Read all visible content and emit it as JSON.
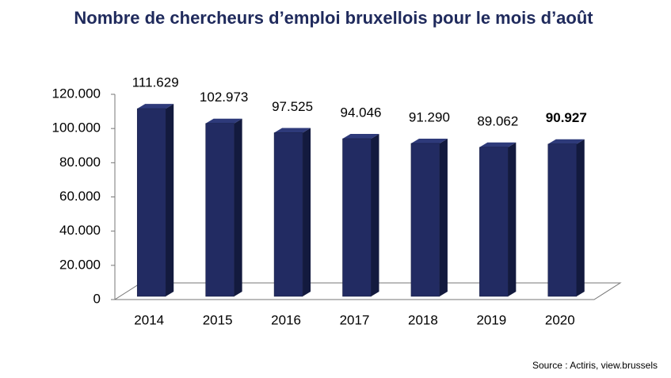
{
  "chart_data": {
    "type": "bar",
    "title": "Nombre de chercheurs d’emploi bruxellois pour le mois d’août",
    "categories": [
      "2014",
      "2015",
      "2016",
      "2017",
      "2018",
      "2019",
      "2020"
    ],
    "values": [
      111629,
      102973,
      97525,
      94046,
      91290,
      89062,
      90927
    ],
    "value_labels": [
      "111.629",
      "102.973",
      "97.525",
      "94.046",
      "91.290",
      "89.062",
      "90.927"
    ],
    "color": "#222b62",
    "ylim": [
      0,
      120000
    ],
    "yticks": [
      0,
      {
        "value": 20000,
        "label": "20.000"
      },
      {
        "value": 40000,
        "label": "40.000"
      },
      {
        "value": 60000,
        "label": "60.000"
      },
      {
        "value": 80000,
        "label": "80.000"
      },
      {
        "value": 100000,
        "label": "100.000"
      },
      {
        "value": 120000,
        "label": "120.000"
      }
    ],
    "source": "Source : Actiris, view.brussels"
  }
}
